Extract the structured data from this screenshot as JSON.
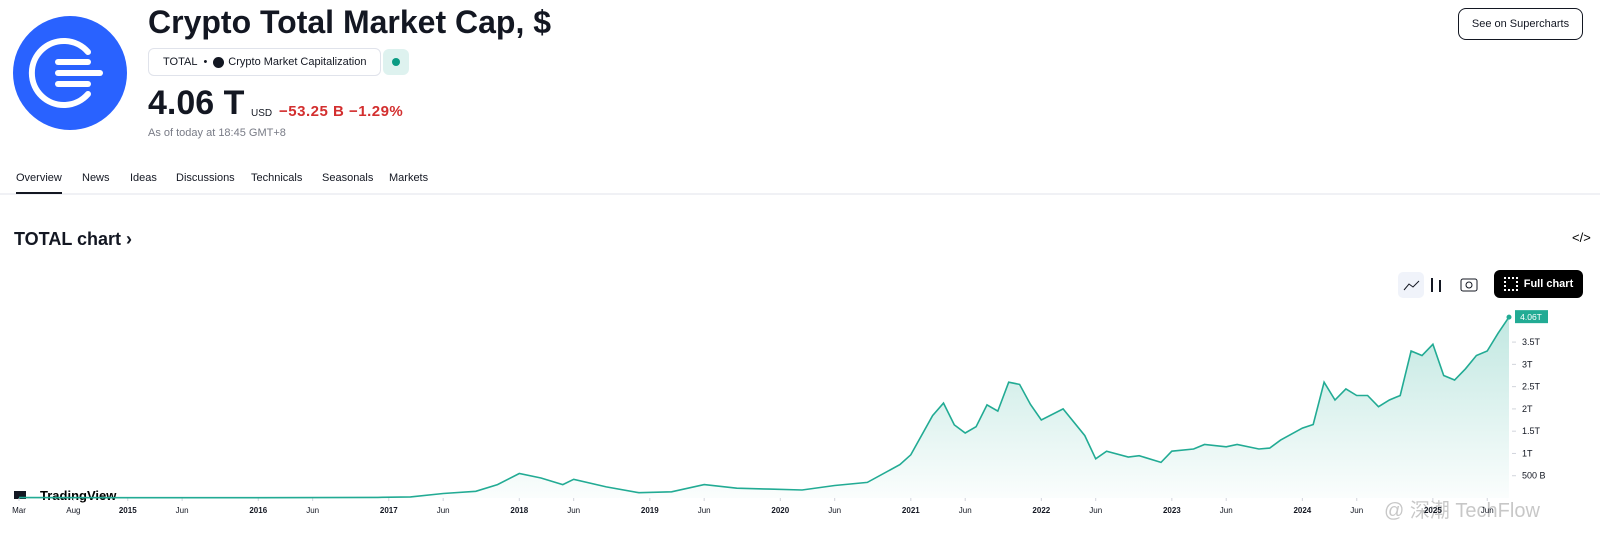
{
  "header": {
    "title": "Crypto Total Market Cap, $",
    "symbol": "TOTAL",
    "source": "Crypto Market Capitalization",
    "price": "4.06 T",
    "currency": "USD",
    "change": "−53.25 B",
    "change_pct": "−1.29%",
    "as_of": "As of today at 18:45 GMT+8",
    "button": "See on Supercharts"
  },
  "tabs": [
    "Overview",
    "News",
    "Ideas",
    "Discussions",
    "Technicals",
    "Seasonals",
    "Markets"
  ],
  "section": {
    "title": "TOTAL chart",
    "full_chart": "Full chart",
    "brand": "TradingView",
    "watermark": "@ 深潮 TechFlow"
  },
  "chart_data": {
    "type": "line",
    "color": "#22ab94",
    "last_label": "4.06T",
    "x": [
      "2014-03",
      "2015-01",
      "2016-01",
      "2016-12",
      "2017-03",
      "2017-06",
      "2017-09",
      "2017-11",
      "2018-01",
      "2018-03",
      "2018-05",
      "2018-06",
      "2018-09",
      "2018-12",
      "2019-03",
      "2019-06",
      "2019-09",
      "2019-12",
      "2020-03",
      "2020-06",
      "2020-09",
      "2020-12",
      "2021-01",
      "2021-03",
      "2021-04",
      "2021-05",
      "2021-06",
      "2021-07",
      "2021-08",
      "2021-09",
      "2021-10",
      "2021-11",
      "2021-12",
      "2022-01",
      "2022-03",
      "2022-05",
      "2022-06",
      "2022-07",
      "2022-09",
      "2022-10",
      "2022-12",
      "2023-01",
      "2023-03",
      "2023-04",
      "2023-06",
      "2023-07",
      "2023-09",
      "2023-10",
      "2023-11",
      "2024-01",
      "2024-02",
      "2024-03",
      "2024-04",
      "2024-05",
      "2024-06",
      "2024-07",
      "2024-08",
      "2024-09",
      "2024-10",
      "2024-11",
      "2024-12",
      "2025-01",
      "2025-02",
      "2025-03",
      "2025-04",
      "2025-05",
      "2025-06",
      "2025-07",
      "2025-08"
    ],
    "values": [
      0.01,
      0.006,
      0.007,
      0.014,
      0.025,
      0.1,
      0.15,
      0.3,
      0.55,
      0.45,
      0.3,
      0.42,
      0.25,
      0.12,
      0.14,
      0.3,
      0.22,
      0.2,
      0.18,
      0.28,
      0.35,
      0.75,
      0.97,
      1.85,
      2.13,
      1.64,
      1.46,
      1.6,
      2.09,
      1.95,
      2.6,
      2.55,
      2.1,
      1.75,
      2.0,
      1.4,
      0.88,
      1.05,
      0.92,
      0.95,
      0.8,
      1.05,
      1.1,
      1.2,
      1.15,
      1.2,
      1.1,
      1.12,
      1.3,
      1.57,
      1.65,
      2.6,
      2.2,
      2.45,
      2.3,
      2.3,
      2.05,
      2.2,
      2.3,
      3.3,
      3.2,
      3.45,
      2.75,
      2.65,
      2.9,
      3.2,
      3.3,
      3.7,
      4.06
    ],
    "xlim": [
      "2014-03",
      "2025-08"
    ],
    "ylim": [
      0,
      4.4
    ],
    "yticks": [
      {
        "value": 0.5,
        "label": "500 B"
      },
      {
        "value": 1,
        "label": "1T"
      },
      {
        "value": 1.5,
        "label": "1.5T"
      },
      {
        "value": 2,
        "label": "2T"
      },
      {
        "value": 2.5,
        "label": "2.5T"
      },
      {
        "value": 3,
        "label": "3T"
      },
      {
        "value": 3.5,
        "label": "3.5T"
      }
    ],
    "xticks": [
      {
        "value": "2014-03",
        "label": "Mar"
      },
      {
        "value": "2014-08",
        "label": "Aug"
      },
      {
        "value": "2015-01",
        "label": "2015"
      },
      {
        "value": "2015-06",
        "label": "Jun"
      },
      {
        "value": "2016-01",
        "label": "2016"
      },
      {
        "value": "2016-06",
        "label": "Jun"
      },
      {
        "value": "2017-01",
        "label": "2017"
      },
      {
        "value": "2017-06",
        "label": "Jun"
      },
      {
        "value": "2018-01",
        "label": "2018"
      },
      {
        "value": "2018-06",
        "label": "Jun"
      },
      {
        "value": "2019-01",
        "label": "2019"
      },
      {
        "value": "2019-06",
        "label": "Jun"
      },
      {
        "value": "2020-01",
        "label": "2020"
      },
      {
        "value": "2020-06",
        "label": "Jun"
      },
      {
        "value": "2021-01",
        "label": "2021"
      },
      {
        "value": "2021-06",
        "label": "Jun"
      },
      {
        "value": "2022-01",
        "label": "2022"
      },
      {
        "value": "2022-06",
        "label": "Jun"
      },
      {
        "value": "2023-01",
        "label": "2023"
      },
      {
        "value": "2023-06",
        "label": "Jun"
      },
      {
        "value": "2024-01",
        "label": "2024"
      },
      {
        "value": "2024-06",
        "label": "Jun"
      },
      {
        "value": "2025-01",
        "label": "2025"
      },
      {
        "value": "2025-06",
        "label": "Jun"
      }
    ]
  }
}
